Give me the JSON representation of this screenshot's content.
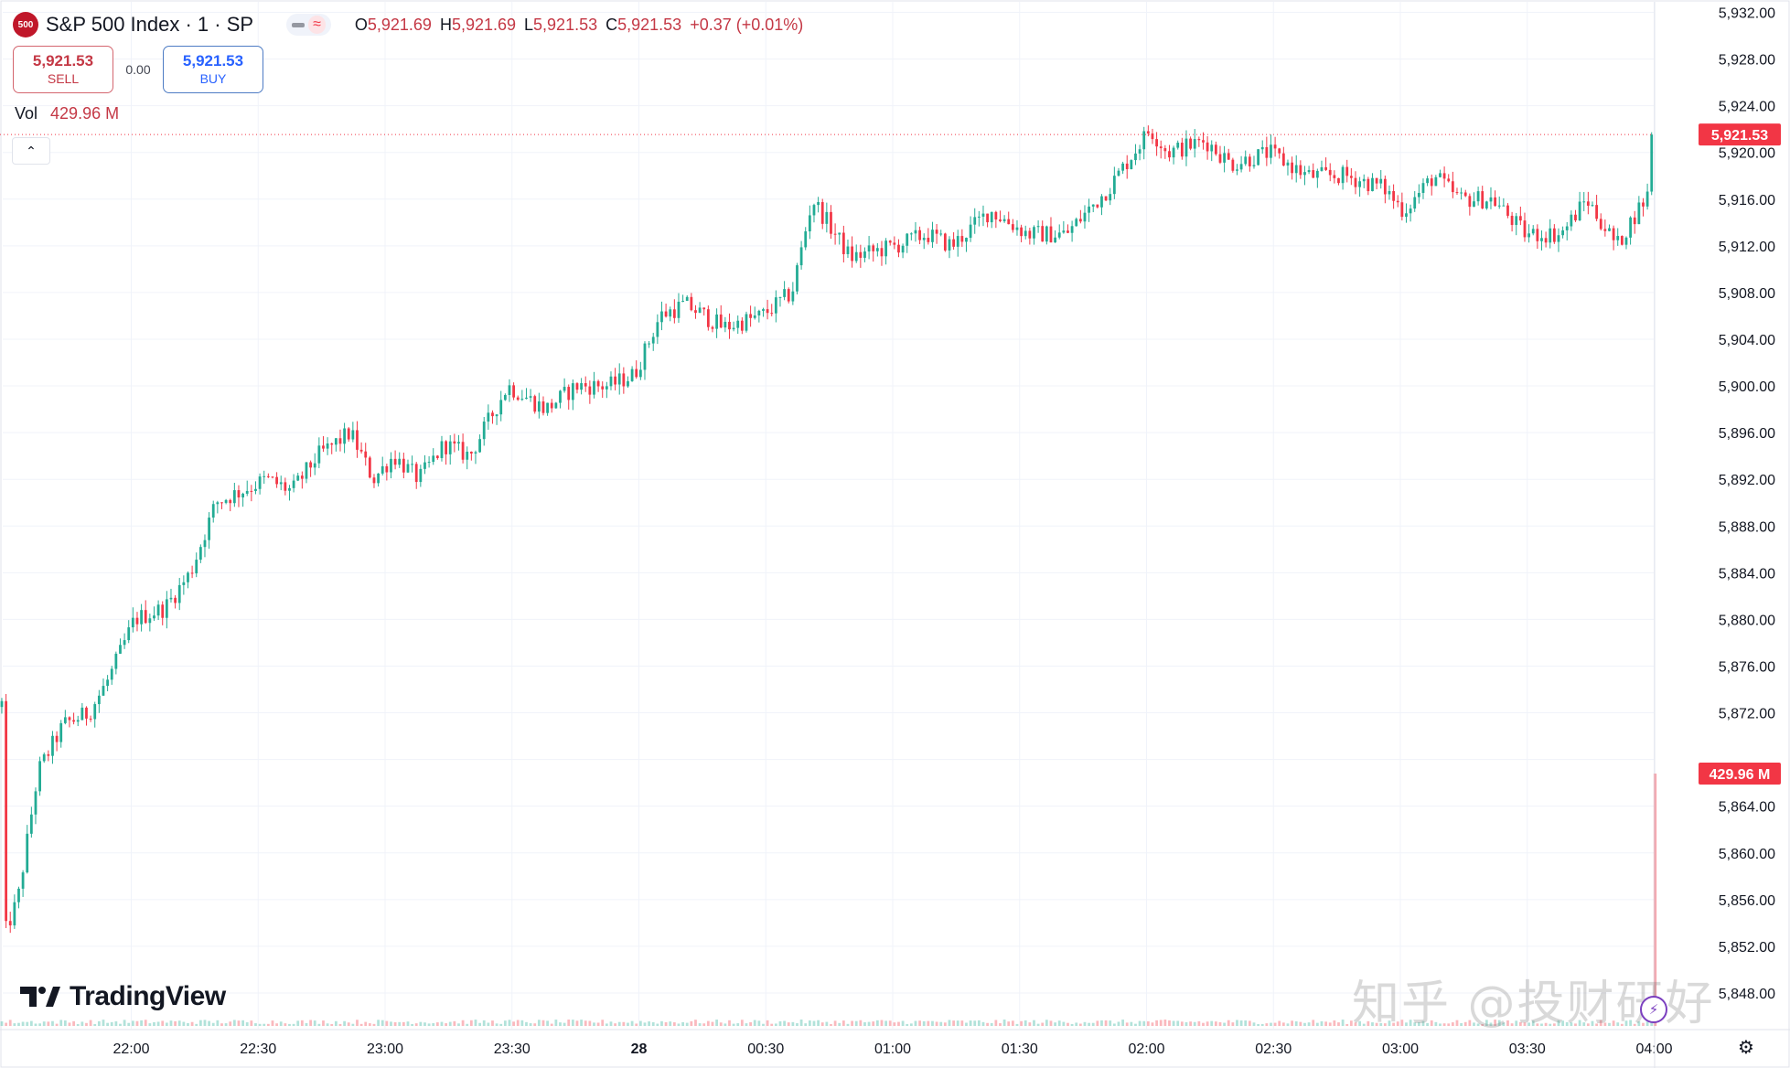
{
  "header": {
    "logo_text": "500",
    "symbol": "S&P 500 Index · 1 · SP",
    "ohlc": {
      "o_label": "O",
      "o": "5,921.69",
      "h_label": "H",
      "h": "5,921.69",
      "l_label": "L",
      "l": "5,921.53",
      "c_label": "C",
      "c": "5,921.53",
      "change": "+0.37 (+0.01%)"
    }
  },
  "trade": {
    "sell_price": "5,921.53",
    "sell_label": "SELL",
    "spread": "0.00",
    "buy_price": "5,921.53",
    "buy_label": "BUY"
  },
  "volume": {
    "label": "Vol",
    "value": "429.96 M"
  },
  "branding": {
    "name": "TradingView"
  },
  "watermark": "知乎 @投财研好",
  "colors": {
    "up": "#22ab94",
    "down": "#f23645",
    "accent": "#2962ff",
    "grid": "#f0f3fa",
    "text": "#131722",
    "price_tag": "#f23645"
  },
  "chart_data": {
    "type": "candlestick",
    "symbol": "S&P 500 Index",
    "interval": "1",
    "ylim": [
      5846,
      5932
    ],
    "yticks": [
      5848,
      5852,
      5856,
      5860,
      5864,
      5868,
      5872,
      5876,
      5880,
      5884,
      5888,
      5892,
      5896,
      5900,
      5904,
      5908,
      5912,
      5916,
      5920,
      5924,
      5928,
      5932
    ],
    "yticks_hidden": [
      5868
    ],
    "xticks": [
      {
        "t": 21.9667,
        "label": "22:00"
      },
      {
        "t": 22.4667,
        "label": "22:30"
      },
      {
        "t": 22.9667,
        "label": "23:00"
      },
      {
        "t": 23.4667,
        "label": "23:30"
      },
      {
        "t": 23.9667,
        "label": "28"
      },
      {
        "t": 24.4667,
        "label": "00:30"
      },
      {
        "t": 24.9667,
        "label": "01:00"
      },
      {
        "t": 25.4667,
        "label": "01:30"
      },
      {
        "t": 25.9667,
        "label": "02:00"
      },
      {
        "t": 26.4667,
        "label": "02:30"
      },
      {
        "t": 26.9667,
        "label": "03:00"
      },
      {
        "t": 27.4667,
        "label": "03:30"
      },
      {
        "t": 27.9667,
        "label": "04:00"
      }
    ],
    "time_range": [
      21.45,
      28.0833
    ],
    "anchors": [
      {
        "t": 21.4567,
        "c": 5873
      },
      {
        "t": 21.4667,
        "c": 5853
      },
      {
        "t": 21.52,
        "c": 5856
      },
      {
        "t": 21.6,
        "c": 5867
      },
      {
        "t": 21.7,
        "c": 5871
      },
      {
        "t": 21.8,
        "c": 5872
      },
      {
        "t": 21.88,
        "c": 5875
      },
      {
        "t": 21.98,
        "c": 5880
      },
      {
        "t": 22.1,
        "c": 5881
      },
      {
        "t": 22.2,
        "c": 5884
      },
      {
        "t": 22.3,
        "c": 5890
      },
      {
        "t": 22.4,
        "c": 5891
      },
      {
        "t": 22.5,
        "c": 5892
      },
      {
        "t": 22.6,
        "c": 5891
      },
      {
        "t": 22.7,
        "c": 5894
      },
      {
        "t": 22.83,
        "c": 5896
      },
      {
        "t": 22.92,
        "c": 5892
      },
      {
        "t": 23.0,
        "c": 5894
      },
      {
        "t": 23.1,
        "c": 5892
      },
      {
        "t": 23.2,
        "c": 5895
      },
      {
        "t": 23.3,
        "c": 5894
      },
      {
        "t": 23.4,
        "c": 5898
      },
      {
        "t": 23.45,
        "c": 5900
      },
      {
        "t": 23.6,
        "c": 5898
      },
      {
        "t": 23.72,
        "c": 5900
      },
      {
        "t": 23.85,
        "c": 5900
      },
      {
        "t": 23.95,
        "c": 5901
      },
      {
        "t": 24.05,
        "c": 5906
      },
      {
        "t": 24.15,
        "c": 5907
      },
      {
        "t": 24.3,
        "c": 5905
      },
      {
        "t": 24.45,
        "c": 5906
      },
      {
        "t": 24.57,
        "c": 5908
      },
      {
        "t": 24.65,
        "c": 5916
      },
      {
        "t": 24.8,
        "c": 5911
      },
      {
        "t": 24.98,
        "c": 5912
      },
      {
        "t": 25.1,
        "c": 5913
      },
      {
        "t": 25.2,
        "c": 5912
      },
      {
        "t": 25.35,
        "c": 5915
      },
      {
        "t": 25.5,
        "c": 5913
      },
      {
        "t": 25.65,
        "c": 5913
      },
      {
        "t": 25.82,
        "c": 5917
      },
      {
        "t": 25.98,
        "c": 5922
      },
      {
        "t": 26.05,
        "c": 5920
      },
      {
        "t": 26.2,
        "c": 5921
      },
      {
        "t": 26.3,
        "c": 5919
      },
      {
        "t": 26.45,
        "c": 5920
      },
      {
        "t": 26.6,
        "c": 5918
      },
      {
        "t": 26.75,
        "c": 5918
      },
      {
        "t": 26.9,
        "c": 5917
      },
      {
        "t": 26.98,
        "c": 5915
      },
      {
        "t": 27.1,
        "c": 5918
      },
      {
        "t": 27.2,
        "c": 5916
      },
      {
        "t": 27.33,
        "c": 5916
      },
      {
        "t": 27.46,
        "c": 5913
      },
      {
        "t": 27.6,
        "c": 5913
      },
      {
        "t": 27.7,
        "c": 5916
      },
      {
        "t": 27.82,
        "c": 5912
      },
      {
        "t": 27.9,
        "c": 5915
      },
      {
        "t": 27.96,
        "c": 5917
      },
      {
        "t": 27.97,
        "c": 5921.53
      }
    ],
    "last_price": 5921.53,
    "last_price_label": "5,921.53",
    "last_volume_label": "429.96 M",
    "last_volume_m": 429.96,
    "grid": true
  }
}
